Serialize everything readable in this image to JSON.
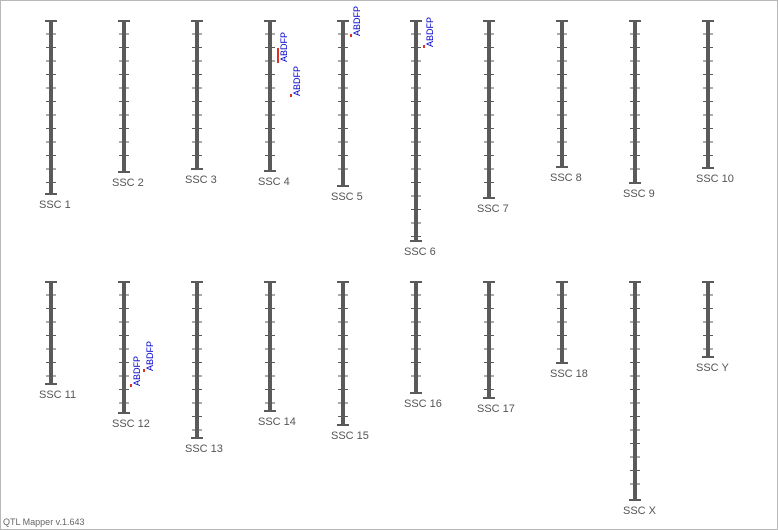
{
  "chromosomes": [
    {
      "label": "SSC 1",
      "qtls": []
    },
    {
      "label": "SSC 2",
      "qtls": []
    },
    {
      "label": "SSC 3",
      "qtls": []
    },
    {
      "label": "SSC 4",
      "qtls": [
        {
          "label": "ABDFP"
        },
        {
          "label": "ABDFP"
        }
      ]
    },
    {
      "label": "SSC 5",
      "qtls": [
        {
          "label": "ABDFP"
        }
      ]
    },
    {
      "label": "SSC 6",
      "qtls": [
        {
          "label": "ABDFP"
        }
      ]
    },
    {
      "label": "SSC 7",
      "qtls": []
    },
    {
      "label": "SSC 8",
      "qtls": []
    },
    {
      "label": "SSC 9",
      "qtls": []
    },
    {
      "label": "SSC 10",
      "qtls": []
    },
    {
      "label": "SSC 11",
      "qtls": []
    },
    {
      "label": "SSC 12",
      "qtls": [
        {
          "label": "ABDFP"
        },
        {
          "label": "ABDFP"
        }
      ]
    },
    {
      "label": "SSC 13",
      "qtls": []
    },
    {
      "label": "SSC 14",
      "qtls": []
    },
    {
      "label": "SSC 15",
      "qtls": []
    },
    {
      "label": "SSC 16",
      "qtls": []
    },
    {
      "label": "SSC 17",
      "qtls": []
    },
    {
      "label": "SSC 18",
      "qtls": []
    },
    {
      "label": "SSC X",
      "qtls": []
    },
    {
      "label": "SSC Y",
      "qtls": []
    }
  ],
  "footer": {
    "version": "QTL Mapper v.1.643"
  }
}
